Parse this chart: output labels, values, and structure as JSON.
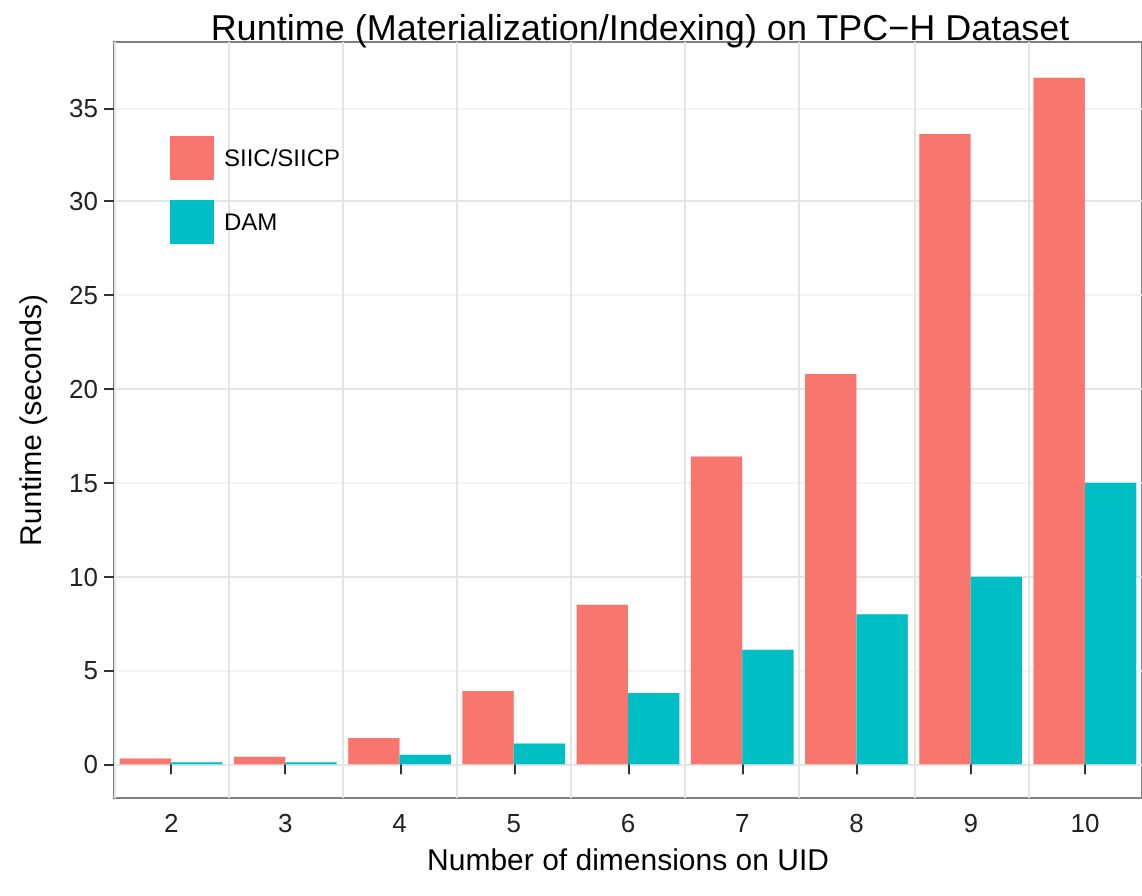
{
  "chart_data": {
    "type": "bar",
    "title": "Runtime (Materialization/Indexing) on TPC−H Dataset",
    "xlabel": "Number of dimensions on UID",
    "ylabel": "Runtime (seconds)",
    "categories": [
      "2",
      "3",
      "4",
      "5",
      "6",
      "7",
      "8",
      "9",
      "10"
    ],
    "series": [
      {
        "name": "SIIC/SIICP",
        "color": "#f8766d",
        "values": [
          0.3,
          0.4,
          1.4,
          3.9,
          8.5,
          16.4,
          20.8,
          33.6,
          36.6
        ]
      },
      {
        "name": "DAM",
        "color": "#00bfc4",
        "values": [
          0.1,
          0.1,
          0.5,
          1.1,
          3.8,
          6.1,
          8.0,
          10.0,
          15.0
        ]
      }
    ],
    "ylim": [
      -1.8,
      38.5
    ],
    "yticks": [
      0,
      5,
      10,
      15,
      20,
      25,
      30,
      35
    ],
    "grid": true,
    "legend": "top left"
  }
}
